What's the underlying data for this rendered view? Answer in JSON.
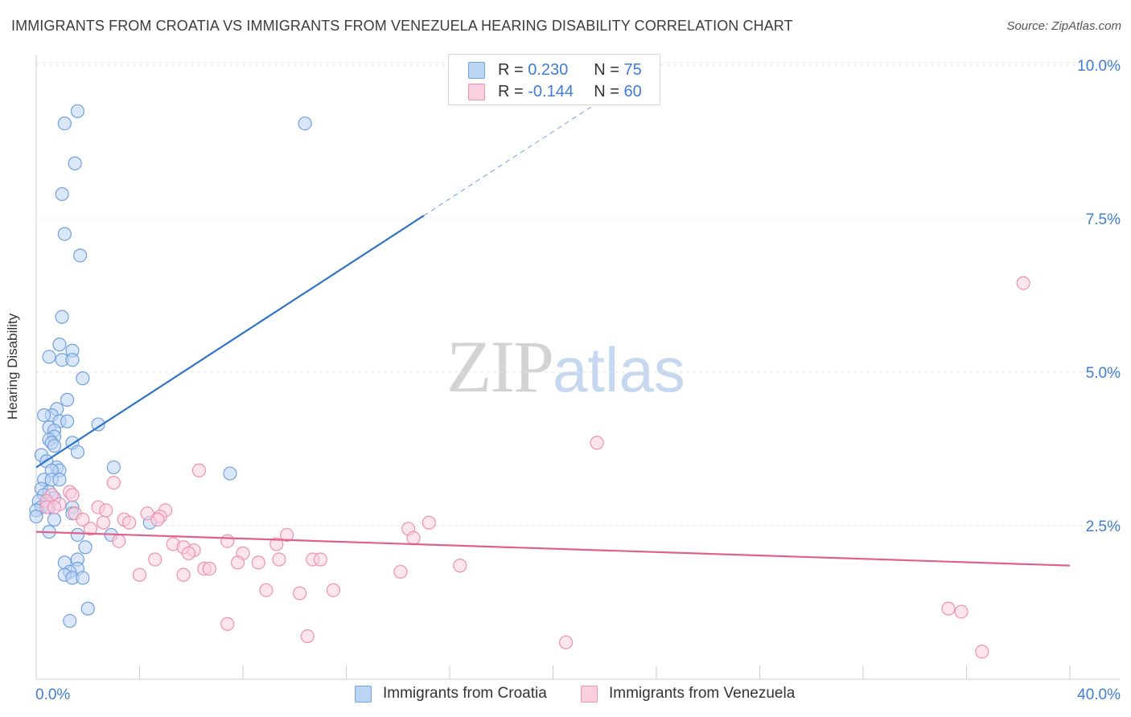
{
  "chart_data": {
    "type": "scatter",
    "title": "IMMIGRANTS FROM CROATIA VS IMMIGRANTS FROM VENEZUELA HEARING DISABILITY CORRELATION CHART",
    "source": "Source: ZipAtlas.com",
    "ylabel": "Hearing Disability",
    "xlabel": "",
    "xlim": [
      0,
      40
    ],
    "ylim": [
      0,
      10.5
    ],
    "x_tick_labels": [
      "0.0%",
      "40.0%"
    ],
    "y_ticks": [
      2.5,
      5.0,
      7.5,
      10.0
    ],
    "y_tick_labels": [
      "2.5%",
      "5.0%",
      "7.5%",
      "10.0%"
    ],
    "watermark": {
      "part1": "ZIP",
      "part2": "atlas"
    },
    "legend": {
      "croatia": {
        "r_label": "R =",
        "r_value": "0.230",
        "n_label": "N =",
        "n_value": "75"
      },
      "venezuela": {
        "r_label": "R =",
        "r_value": "-0.144",
        "n_label": "N =",
        "n_value": "60"
      }
    },
    "series": [
      {
        "name": "Immigrants from Croatia",
        "color": "#6fa0e0",
        "trend": {
          "x0": 0.0,
          "y0": 3.45,
          "x1": 15.0,
          "y1": 7.55,
          "dashed_to_x": 22.8,
          "color": "#2f74c8"
        },
        "points": [
          [
            1.6,
            9.25
          ],
          [
            1.1,
            9.05
          ],
          [
            10.4,
            9.05
          ],
          [
            1.5,
            8.4
          ],
          [
            1.0,
            7.9
          ],
          [
            1.1,
            7.25
          ],
          [
            1.7,
            6.9
          ],
          [
            1.0,
            5.9
          ],
          [
            0.9,
            5.45
          ],
          [
            0.5,
            5.25
          ],
          [
            1.4,
            5.35
          ],
          [
            1.0,
            5.2
          ],
          [
            1.4,
            5.2
          ],
          [
            1.8,
            4.9
          ],
          [
            1.2,
            4.55
          ],
          [
            0.8,
            4.4
          ],
          [
            0.6,
            4.3
          ],
          [
            0.3,
            4.3
          ],
          [
            0.9,
            4.2
          ],
          [
            1.2,
            4.2
          ],
          [
            2.4,
            4.15
          ],
          [
            0.5,
            4.1
          ],
          [
            0.7,
            4.05
          ],
          [
            0.7,
            3.95
          ],
          [
            0.5,
            3.9
          ],
          [
            0.6,
            3.85
          ],
          [
            1.4,
            3.85
          ],
          [
            0.7,
            3.8
          ],
          [
            1.6,
            3.7
          ],
          [
            0.2,
            3.65
          ],
          [
            0.4,
            3.55
          ],
          [
            0.8,
            3.45
          ],
          [
            0.9,
            3.4
          ],
          [
            0.6,
            3.4
          ],
          [
            3.0,
            3.45
          ],
          [
            7.5,
            3.35
          ],
          [
            0.3,
            3.25
          ],
          [
            0.6,
            3.25
          ],
          [
            0.9,
            3.25
          ],
          [
            0.2,
            3.1
          ],
          [
            0.5,
            3.05
          ],
          [
            0.3,
            3.0
          ],
          [
            0.7,
            2.95
          ],
          [
            0.1,
            2.9
          ],
          [
            0.4,
            2.85
          ],
          [
            0.2,
            2.8
          ],
          [
            0.5,
            2.8
          ],
          [
            1.4,
            2.8
          ],
          [
            0.0,
            2.75
          ],
          [
            1.4,
            2.7
          ],
          [
            0.0,
            2.65
          ],
          [
            0.7,
            2.6
          ],
          [
            4.4,
            2.55
          ],
          [
            0.5,
            2.4
          ],
          [
            2.9,
            2.35
          ],
          [
            1.6,
            2.35
          ],
          [
            1.9,
            2.15
          ],
          [
            1.6,
            1.95
          ],
          [
            1.1,
            1.9
          ],
          [
            1.6,
            1.8
          ],
          [
            1.3,
            1.75
          ],
          [
            1.1,
            1.7
          ],
          [
            1.4,
            1.65
          ],
          [
            1.8,
            1.65
          ],
          [
            2.0,
            1.15
          ],
          [
            1.3,
            0.95
          ]
        ]
      },
      {
        "name": "Immigrants from Venezuela",
        "color": "#f08fb0",
        "trend": {
          "x0": 0.0,
          "y0": 2.4,
          "x1": 40.0,
          "y1": 1.85,
          "color": "#e0608a"
        },
        "points": [
          [
            38.2,
            6.45
          ],
          [
            21.7,
            3.85
          ],
          [
            6.3,
            3.4
          ],
          [
            3.0,
            3.2
          ],
          [
            1.3,
            3.05
          ],
          [
            1.4,
            3.0
          ],
          [
            0.6,
            3.0
          ],
          [
            0.4,
            2.9
          ],
          [
            0.9,
            2.85
          ],
          [
            0.4,
            2.8
          ],
          [
            0.7,
            2.8
          ],
          [
            2.4,
            2.8
          ],
          [
            2.7,
            2.75
          ],
          [
            5.0,
            2.75
          ],
          [
            4.3,
            2.7
          ],
          [
            4.8,
            2.65
          ],
          [
            1.5,
            2.7
          ],
          [
            1.8,
            2.6
          ],
          [
            3.4,
            2.6
          ],
          [
            4.7,
            2.6
          ],
          [
            2.6,
            2.55
          ],
          [
            3.6,
            2.55
          ],
          [
            15.2,
            2.55
          ],
          [
            14.4,
            2.45
          ],
          [
            2.1,
            2.45
          ],
          [
            9.7,
            2.35
          ],
          [
            14.6,
            2.3
          ],
          [
            3.2,
            2.25
          ],
          [
            7.4,
            2.25
          ],
          [
            5.3,
            2.2
          ],
          [
            9.3,
            2.2
          ],
          [
            5.7,
            2.15
          ],
          [
            6.1,
            2.1
          ],
          [
            8.0,
            2.05
          ],
          [
            5.9,
            2.05
          ],
          [
            4.6,
            1.95
          ],
          [
            9.4,
            1.95
          ],
          [
            10.7,
            1.95
          ],
          [
            11.0,
            1.95
          ],
          [
            7.8,
            1.9
          ],
          [
            8.6,
            1.9
          ],
          [
            16.4,
            1.85
          ],
          [
            6.5,
            1.8
          ],
          [
            6.7,
            1.8
          ],
          [
            14.1,
            1.75
          ],
          [
            4.0,
            1.7
          ],
          [
            5.7,
            1.7
          ],
          [
            8.9,
            1.45
          ],
          [
            11.5,
            1.45
          ],
          [
            10.2,
            1.4
          ],
          [
            35.3,
            1.15
          ],
          [
            35.8,
            1.1
          ],
          [
            7.4,
            0.9
          ],
          [
            10.5,
            0.7
          ],
          [
            20.5,
            0.6
          ],
          [
            36.6,
            0.45
          ]
        ]
      }
    ]
  },
  "colors": {
    "croatia_fill": "#bcd4f3",
    "croatia_stroke": "#6fa0e0",
    "venezuela_fill": "#fbd0de",
    "venezuela_stroke": "#f08fb0",
    "tick_label": "#3d7dd8",
    "grid": "#e4e4e4"
  },
  "bottom_legend": [
    "Immigrants from Croatia",
    "Immigrants from Venezuela"
  ]
}
